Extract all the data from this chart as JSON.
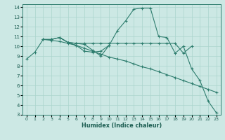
{
  "xlabel": "Humidex (Indice chaleur)",
  "bg_color": "#cce8e4",
  "line_color": "#2e7d6e",
  "grid_color": "#aad4cc",
  "xlim": [
    -0.5,
    23.5
  ],
  "ylim": [
    3,
    14.3
  ],
  "xticks": [
    0,
    1,
    2,
    3,
    4,
    5,
    6,
    7,
    8,
    9,
    10,
    11,
    12,
    13,
    14,
    15,
    16,
    17,
    18,
    19,
    20,
    21,
    22,
    23
  ],
  "yticks": [
    3,
    4,
    5,
    6,
    7,
    8,
    9,
    10,
    11,
    12,
    13,
    14
  ],
  "series": [
    {
      "x": [
        0,
        1,
        2,
        3,
        4,
        5,
        6,
        7,
        8,
        9,
        10,
        11,
        12,
        13,
        14,
        15,
        16,
        17,
        18,
        19,
        20,
        21,
        22,
        23
      ],
      "y": [
        8.7,
        9.4,
        10.7,
        10.7,
        10.9,
        10.4,
        10.3,
        10.2,
        9.6,
        9.0,
        10.1,
        11.6,
        12.6,
        13.8,
        13.9,
        13.9,
        11.0,
        10.9,
        9.3,
        10.0,
        7.7,
        6.5,
        4.4,
        3.2
      ]
    },
    {
      "x": [
        2,
        3,
        4,
        5,
        6,
        7,
        8,
        9,
        10,
        11,
        12,
        13,
        14,
        15,
        16,
        17,
        18,
        19,
        20
      ],
      "y": [
        10.7,
        10.7,
        10.9,
        10.4,
        10.3,
        10.3,
        10.3,
        10.3,
        10.3,
        10.3,
        10.3,
        10.3,
        10.3,
        10.3,
        10.3,
        10.3,
        10.3,
        9.3,
        10.0
      ]
    },
    {
      "x": [
        2,
        3,
        4,
        5,
        6,
        7,
        8,
        9,
        10,
        11,
        12,
        13,
        14,
        15,
        16,
        17,
        18,
        19,
        20,
        21,
        22,
        23
      ],
      "y": [
        10.7,
        10.6,
        10.5,
        10.3,
        10.1,
        9.8,
        9.5,
        9.2,
        8.9,
        8.7,
        8.5,
        8.2,
        7.9,
        7.7,
        7.4,
        7.1,
        6.8,
        6.5,
        6.2,
        5.9,
        5.6,
        5.3
      ]
    },
    {
      "x": [
        4,
        5,
        6,
        7,
        8,
        9,
        10
      ],
      "y": [
        10.9,
        10.4,
        10.1,
        9.5,
        9.4,
        9.5,
        10.1
      ]
    }
  ]
}
